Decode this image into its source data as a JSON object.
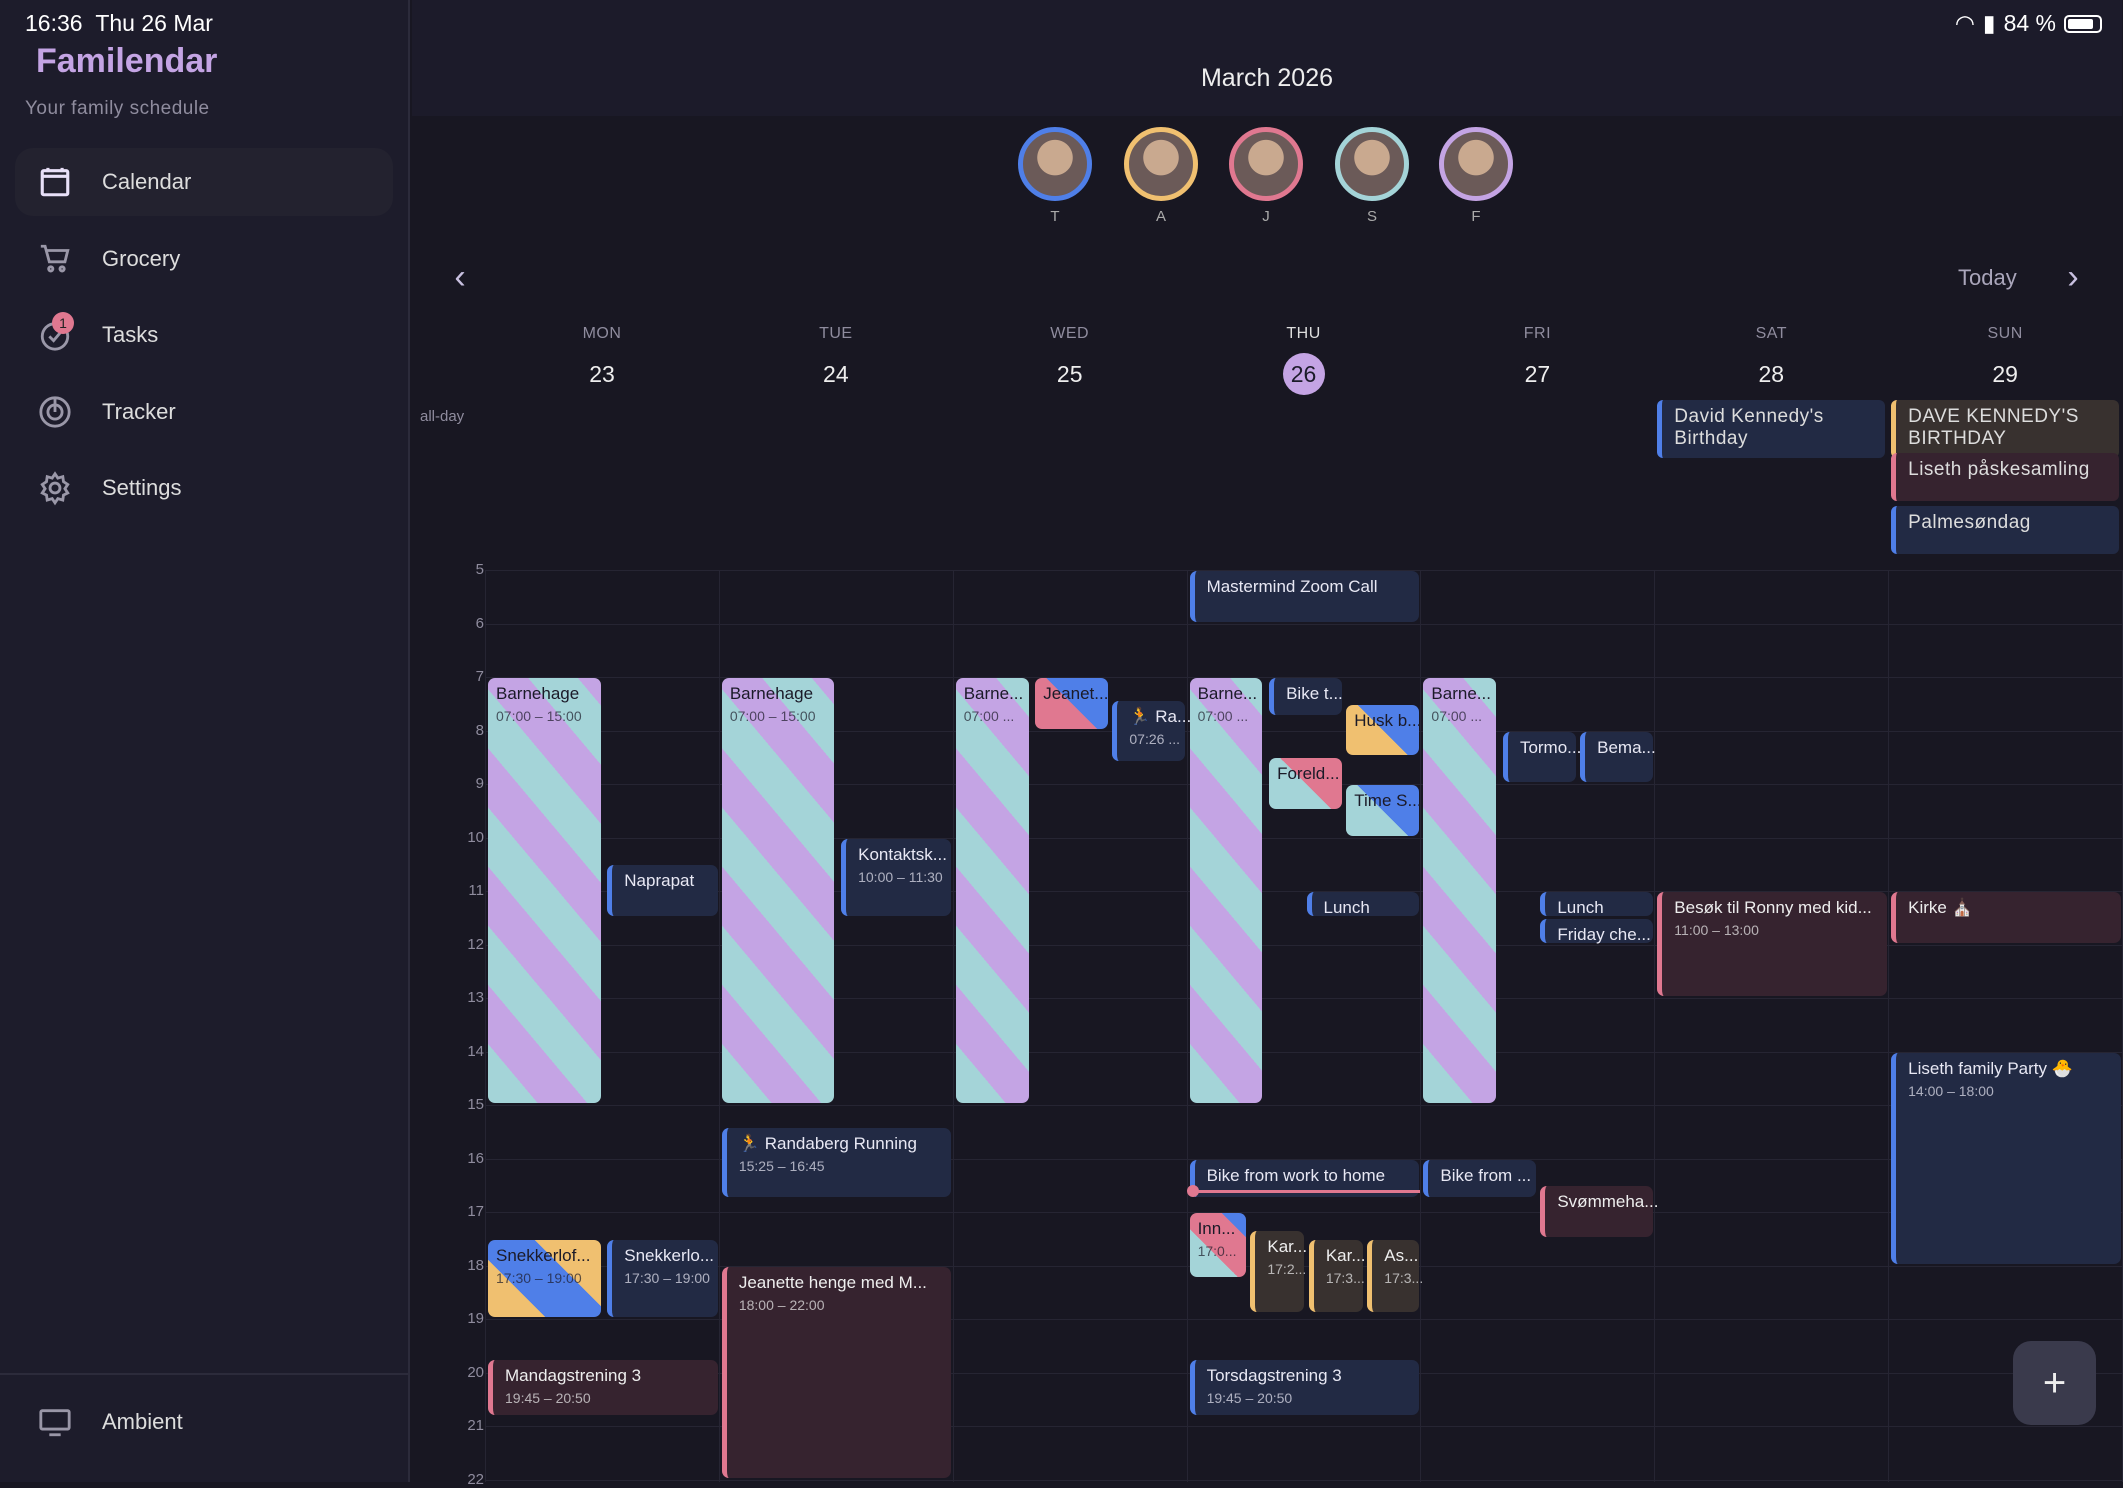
{
  "status": {
    "time": "16:36",
    "date": "Thu 26 Mar",
    "battery": "84 %"
  },
  "app": {
    "title": "Familendar",
    "tagline": "Your family schedule"
  },
  "sidebar": {
    "items": [
      {
        "label": "Calendar",
        "icon": "calendar-icon",
        "active": true
      },
      {
        "label": "Grocery",
        "icon": "cart-icon"
      },
      {
        "label": "Tasks",
        "icon": "check-circle-icon",
        "badge": "1"
      },
      {
        "label": "Tracker",
        "icon": "radar-icon"
      },
      {
        "label": "Settings",
        "icon": "gear-icon"
      }
    ],
    "bottom": {
      "label": "Ambient",
      "icon": "monitor-icon"
    }
  },
  "header": {
    "month": "March 2026",
    "today": "Today",
    "prev_icon": "chevron-left-icon",
    "next_icon": "chevron-right-icon"
  },
  "members": [
    {
      "initial": "T",
      "color": "#4f7fe8"
    },
    {
      "initial": "A",
      "color": "#f0c070"
    },
    {
      "initial": "J",
      "color": "#e07890"
    },
    {
      "initial": "S",
      "color": "#a4d4d8"
    },
    {
      "initial": "F",
      "color": "#c4a4e4"
    }
  ],
  "days": [
    {
      "name": "MON",
      "date": "23"
    },
    {
      "name": "TUE",
      "date": "24"
    },
    {
      "name": "WED",
      "date": "25"
    },
    {
      "name": "THU",
      "date": "26",
      "today": true
    },
    {
      "name": "FRI",
      "date": "27"
    },
    {
      "name": "SAT",
      "date": "28"
    },
    {
      "name": "SUN",
      "date": "29"
    }
  ],
  "allday_label": "all-day",
  "allday": [
    {
      "day": 5,
      "title": "David Kennedy's Birthday",
      "style": "blue"
    },
    {
      "day": 6,
      "title": "DAVE KENNEDY'S BIRTHDAY",
      "style": "brown"
    },
    {
      "day": 6,
      "title": "Liseth påskesamling",
      "style": "maroon"
    },
    {
      "day": 6,
      "title": "Palmesøndag",
      "style": "blue"
    }
  ],
  "hours": [
    "5",
    "6",
    "7",
    "8",
    "9",
    "10",
    "11",
    "12",
    "13",
    "14",
    "15",
    "16",
    "17",
    "18",
    "19",
    "20",
    "21",
    "22"
  ],
  "now": "16:36",
  "colors": {
    "purple": "#c4a4e4",
    "teal": "#a4d4d8",
    "blue": "#4f7fe8",
    "pink": "#e07890",
    "yellow": "#f0c070"
  },
  "events": [
    {
      "day": 0,
      "start": 7,
      "end": 15,
      "title": "Barnehage",
      "time": "07:00 – 15:00",
      "style": "stripe"
    },
    {
      "day": 0,
      "start": 10.5,
      "end": 11.5,
      "title": "Naprapat",
      "style": "blue"
    },
    {
      "day": 0,
      "start": 17.5,
      "end": 19,
      "title": "Snekkerlof...",
      "time": "17:30 – 19:00",
      "style": "yb"
    },
    {
      "day": 0,
      "start": 17.5,
      "end": 19,
      "title": "Snekkerlo...",
      "time": "17:30 – 19:00",
      "style": "blue"
    },
    {
      "day": 0,
      "start": 19.75,
      "end": 20.83,
      "title": "Mandagstrening 3",
      "time": "19:45 – 20:50",
      "style": "maroon"
    },
    {
      "day": 1,
      "start": 7,
      "end": 15,
      "title": "Barnehage",
      "time": "07:00 – 15:00",
      "style": "stripe"
    },
    {
      "day": 1,
      "start": 10,
      "end": 11.5,
      "title": "Kontaktsk...",
      "time": "10:00 – 11:30",
      "style": "blue"
    },
    {
      "day": 1,
      "start": 15.42,
      "end": 16.75,
      "title": "🏃 Randaberg Running",
      "time": "15:25 – 16:45",
      "style": "blue"
    },
    {
      "day": 1,
      "start": 18,
      "end": 22,
      "title": "Jeanette henge med M...",
      "time": "18:00 – 22:00",
      "style": "maroon"
    },
    {
      "day": 2,
      "start": 7,
      "end": 15,
      "title": "Barne...",
      "time": "07:00 ...",
      "style": "stripe"
    },
    {
      "day": 2,
      "start": 7,
      "end": 8,
      "title": "Jeanet...",
      "style": "pb"
    },
    {
      "day": 2,
      "start": 7.43,
      "end": 8.6,
      "title": "🏃 Ra...",
      "time": "07:26 ...",
      "style": "blue"
    },
    {
      "day": 3,
      "start": 5,
      "end": 6,
      "title": "Mastermind Zoom Call",
      "style": "blue"
    },
    {
      "day": 3,
      "start": 7,
      "end": 15,
      "title": "Barne...",
      "time": "07:00 ...",
      "style": "stripe"
    },
    {
      "day": 3,
      "start": 7,
      "end": 7.75,
      "title": "Bike t...",
      "style": "blue"
    },
    {
      "day": 3,
      "start": 7.5,
      "end": 8.5,
      "title": "Husk b...",
      "style": "yb2"
    },
    {
      "day": 3,
      "start": 8.5,
      "end": 9.5,
      "title": "Foreld...",
      "style": "tp"
    },
    {
      "day": 3,
      "start": 9,
      "end": 10,
      "title": "Time S...",
      "style": "tb"
    },
    {
      "day": 3,
      "start": 11,
      "end": 11.5,
      "title": "Lunch",
      "style": "blue"
    },
    {
      "day": 3,
      "start": 16,
      "end": 16.75,
      "title": "Bike from work to home",
      "style": "blue"
    },
    {
      "day": 3,
      "start": 17,
      "end": 18.25,
      "title": "Inn...",
      "time": "17:0...",
      "style": "inn"
    },
    {
      "day": 3,
      "start": 17.33,
      "end": 18.9,
      "title": "Kar...",
      "time": "17:2...",
      "style": "brown"
    },
    {
      "day": 3,
      "start": 17.5,
      "end": 18.9,
      "title": "Kar...",
      "time": "17:3...",
      "style": "brown"
    },
    {
      "day": 3,
      "start": 17.5,
      "end": 18.9,
      "title": "As...",
      "time": "17:3...",
      "style": "brown"
    },
    {
      "day": 3,
      "start": 19.75,
      "end": 20.83,
      "title": "Torsdagstrening 3",
      "time": "19:45 – 20:50",
      "style": "blue"
    },
    {
      "day": 4,
      "start": 7,
      "end": 15,
      "title": "Barne...",
      "time": "07:00 ...",
      "style": "stripe"
    },
    {
      "day": 4,
      "start": 8,
      "end": 9,
      "title": "Tormo...",
      "style": "blue"
    },
    {
      "day": 4,
      "start": 8,
      "end": 9,
      "title": "Bema...",
      "style": "blue"
    },
    {
      "day": 4,
      "start": 11,
      "end": 11.5,
      "title": "Lunch",
      "style": "blue"
    },
    {
      "day": 4,
      "start": 11.5,
      "end": 12,
      "title": "Friday che...",
      "style": "blue"
    },
    {
      "day": 4,
      "start": 16,
      "end": 16.75,
      "title": "Bike from ...",
      "style": "blue"
    },
    {
      "day": 4,
      "start": 16.5,
      "end": 17.5,
      "title": "Svømmeha...",
      "style": "maroon"
    },
    {
      "day": 5,
      "start": 11,
      "end": 13,
      "title": "Besøk til Ronny med kid...",
      "time": "11:00 – 13:00",
      "style": "maroon"
    },
    {
      "day": 6,
      "start": 11,
      "end": 12,
      "title": "Kirke ⛪",
      "style": "maroon"
    },
    {
      "day": 6,
      "start": 14,
      "end": 18,
      "title": "Liseth family Party 🐣",
      "time": "14:00 – 18:00",
      "style": "blue"
    }
  ],
  "fab": {
    "label": "+",
    "icon": "plus-icon"
  }
}
